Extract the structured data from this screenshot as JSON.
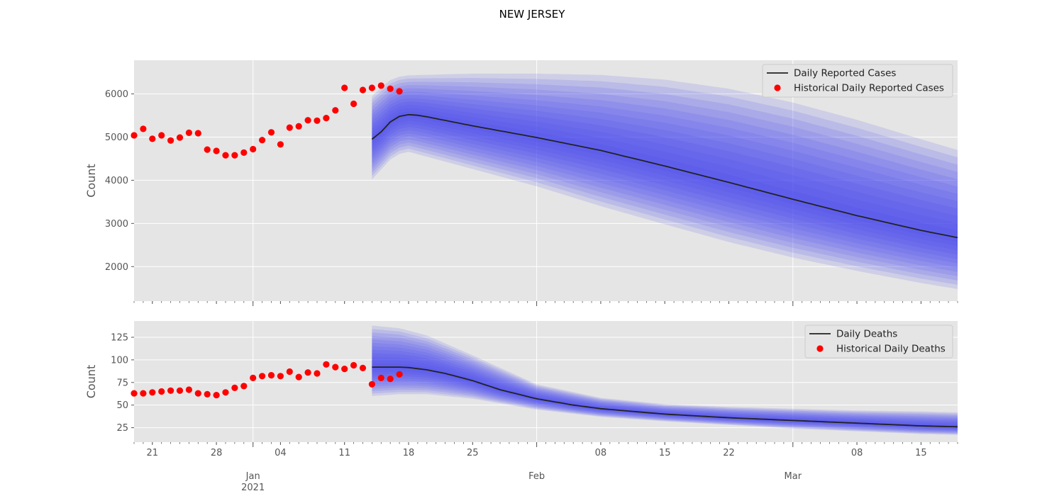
{
  "title": "NEW JERSEY",
  "x_axis": {
    "start": "2020-12-19",
    "end": "2021-03-19",
    "major_ticks": [
      {
        "date": "2021-01-01",
        "label": "Jan",
        "sublabel": "2021"
      },
      {
        "date": "2021-02-01",
        "label": "Feb",
        "sublabel": ""
      },
      {
        "date": "2021-03-01",
        "label": "Mar",
        "sublabel": ""
      }
    ],
    "minor_ticks": [
      {
        "date": "2020-12-21",
        "label": "21"
      },
      {
        "date": "2020-12-28",
        "label": "28"
      },
      {
        "date": "2021-01-04",
        "label": "04"
      },
      {
        "date": "2021-01-11",
        "label": "11"
      },
      {
        "date": "2021-01-18",
        "label": "18"
      },
      {
        "date": "2021-01-25",
        "label": "25"
      },
      {
        "date": "2021-02-08",
        "label": "08"
      },
      {
        "date": "2021-02-15",
        "label": "15"
      },
      {
        "date": "2021-02-22",
        "label": "22"
      },
      {
        "date": "2021-03-08",
        "label": "08"
      },
      {
        "date": "2021-03-15",
        "label": "15"
      }
    ]
  },
  "colors": {
    "panel_bg": "#e5e5e5",
    "grid": "#ffffff",
    "band": "#4a4af0",
    "median_line": "#222222",
    "historical": "#ff0000"
  },
  "chart_data": [
    {
      "type": "line",
      "panel": "cases",
      "ylabel": "Count",
      "ylim": [
        1200,
        6780
      ],
      "yticks": [
        2000,
        3000,
        4000,
        5000,
        6000
      ],
      "grid": true,
      "legend_position": "upper right",
      "legend": [
        "Daily Reported Cases",
        "Historical Daily Reported Cases"
      ],
      "historical": {
        "name": "Historical Daily Reported Cases",
        "start_date": "2020-12-19",
        "values": [
          5040,
          5190,
          4960,
          5040,
          4920,
          4990,
          5100,
          5090,
          4710,
          4680,
          4580,
          4580,
          4640,
          4720,
          4930,
          5110,
          4830,
          5220,
          5250,
          5390,
          5380,
          5440,
          5620,
          6140,
          5770,
          6090,
          6140,
          6190,
          6120,
          6060
        ]
      },
      "forecast": {
        "name": "Daily Reported Cases",
        "start_date": "2021-01-14",
        "end_date": "2021-03-19",
        "median": [
          [
            "2021-01-14",
            4950
          ],
          [
            "2021-01-15",
            5120
          ],
          [
            "2021-01-16",
            5350
          ],
          [
            "2021-01-17",
            5480
          ],
          [
            "2021-01-18",
            5520
          ],
          [
            "2021-01-19",
            5505
          ],
          [
            "2021-01-20",
            5470
          ],
          [
            "2021-01-25",
            5260
          ],
          [
            "2021-02-01",
            4990
          ],
          [
            "2021-02-08",
            4690
          ],
          [
            "2021-02-15",
            4330
          ],
          [
            "2021-02-22",
            3950
          ],
          [
            "2021-03-01",
            3560
          ],
          [
            "2021-03-08",
            3180
          ],
          [
            "2021-03-15",
            2840
          ],
          [
            "2021-03-19",
            2670
          ]
        ],
        "outer_upper": [
          [
            "2021-01-14",
            5950
          ],
          [
            "2021-01-15",
            6150
          ],
          [
            "2021-01-16",
            6320
          ],
          [
            "2021-01-17",
            6400
          ],
          [
            "2021-01-18",
            6430
          ],
          [
            "2021-01-25",
            6470
          ],
          [
            "2021-02-01",
            6470
          ],
          [
            "2021-02-08",
            6440
          ],
          [
            "2021-02-15",
            6330
          ],
          [
            "2021-02-22",
            6120
          ],
          [
            "2021-03-01",
            5800
          ],
          [
            "2021-03-08",
            5400
          ],
          [
            "2021-03-15",
            4950
          ],
          [
            "2021-03-19",
            4700
          ]
        ],
        "outer_lower": [
          [
            "2021-01-14",
            4020
          ],
          [
            "2021-01-15",
            4250
          ],
          [
            "2021-01-16",
            4480
          ],
          [
            "2021-01-17",
            4610
          ],
          [
            "2021-01-18",
            4660
          ],
          [
            "2021-01-25",
            4260
          ],
          [
            "2021-02-01",
            3860
          ],
          [
            "2021-02-08",
            3400
          ],
          [
            "2021-02-15",
            2980
          ],
          [
            "2021-02-22",
            2570
          ],
          [
            "2021-03-01",
            2210
          ],
          [
            "2021-03-08",
            1900
          ],
          [
            "2021-03-15",
            1620
          ],
          [
            "2021-03-19",
            1480
          ]
        ]
      }
    },
    {
      "type": "line",
      "panel": "deaths",
      "ylabel": "Count",
      "ylim": [
        9,
        143
      ],
      "yticks": [
        25,
        50,
        75,
        100,
        125
      ],
      "grid": true,
      "legend_position": "upper right",
      "legend": [
        "Daily Deaths",
        "Historical Daily Deaths"
      ],
      "historical": {
        "name": "Historical Daily Deaths",
        "start_date": "2020-12-19",
        "values": [
          63,
          63,
          64,
          65,
          66,
          66,
          67,
          63,
          62,
          61,
          64,
          69,
          71,
          80,
          82,
          83,
          82,
          87,
          81,
          86,
          85,
          95,
          92,
          90,
          94,
          91,
          73,
          80,
          79,
          84
        ]
      },
      "forecast": {
        "name": "Daily Deaths",
        "start_date": "2021-01-14",
        "end_date": "2021-03-19",
        "median": [
          [
            "2021-01-14",
            92
          ],
          [
            "2021-01-17",
            92
          ],
          [
            "2021-01-18",
            91.5
          ],
          [
            "2021-01-20",
            89
          ],
          [
            "2021-01-22",
            85
          ],
          [
            "2021-01-25",
            77
          ],
          [
            "2021-01-28",
            67
          ],
          [
            "2021-02-01",
            57
          ],
          [
            "2021-02-05",
            50
          ],
          [
            "2021-02-08",
            46
          ],
          [
            "2021-02-15",
            40
          ],
          [
            "2021-02-22",
            36
          ],
          [
            "2021-03-01",
            33
          ],
          [
            "2021-03-08",
            30
          ],
          [
            "2021-03-15",
            27
          ],
          [
            "2021-03-19",
            26
          ]
        ],
        "outer_upper": [
          [
            "2021-01-14",
            138
          ],
          [
            "2021-01-17",
            135
          ],
          [
            "2021-01-20",
            127
          ],
          [
            "2021-01-25",
            105
          ],
          [
            "2021-02-01",
            73
          ],
          [
            "2021-02-08",
            58
          ],
          [
            "2021-02-15",
            51
          ],
          [
            "2021-02-22",
            48
          ],
          [
            "2021-03-01",
            46
          ],
          [
            "2021-03-08",
            44
          ],
          [
            "2021-03-15",
            43
          ],
          [
            "2021-03-19",
            42
          ]
        ],
        "outer_lower": [
          [
            "2021-01-14",
            60
          ],
          [
            "2021-01-17",
            62
          ],
          [
            "2021-01-20",
            62
          ],
          [
            "2021-01-25",
            57
          ],
          [
            "2021-02-01",
            45
          ],
          [
            "2021-02-08",
            37
          ],
          [
            "2021-02-15",
            32
          ],
          [
            "2021-02-22",
            28
          ],
          [
            "2021-03-01",
            24
          ],
          [
            "2021-03-08",
            21
          ],
          [
            "2021-03-15",
            18
          ],
          [
            "2021-03-19",
            17
          ]
        ]
      }
    }
  ]
}
